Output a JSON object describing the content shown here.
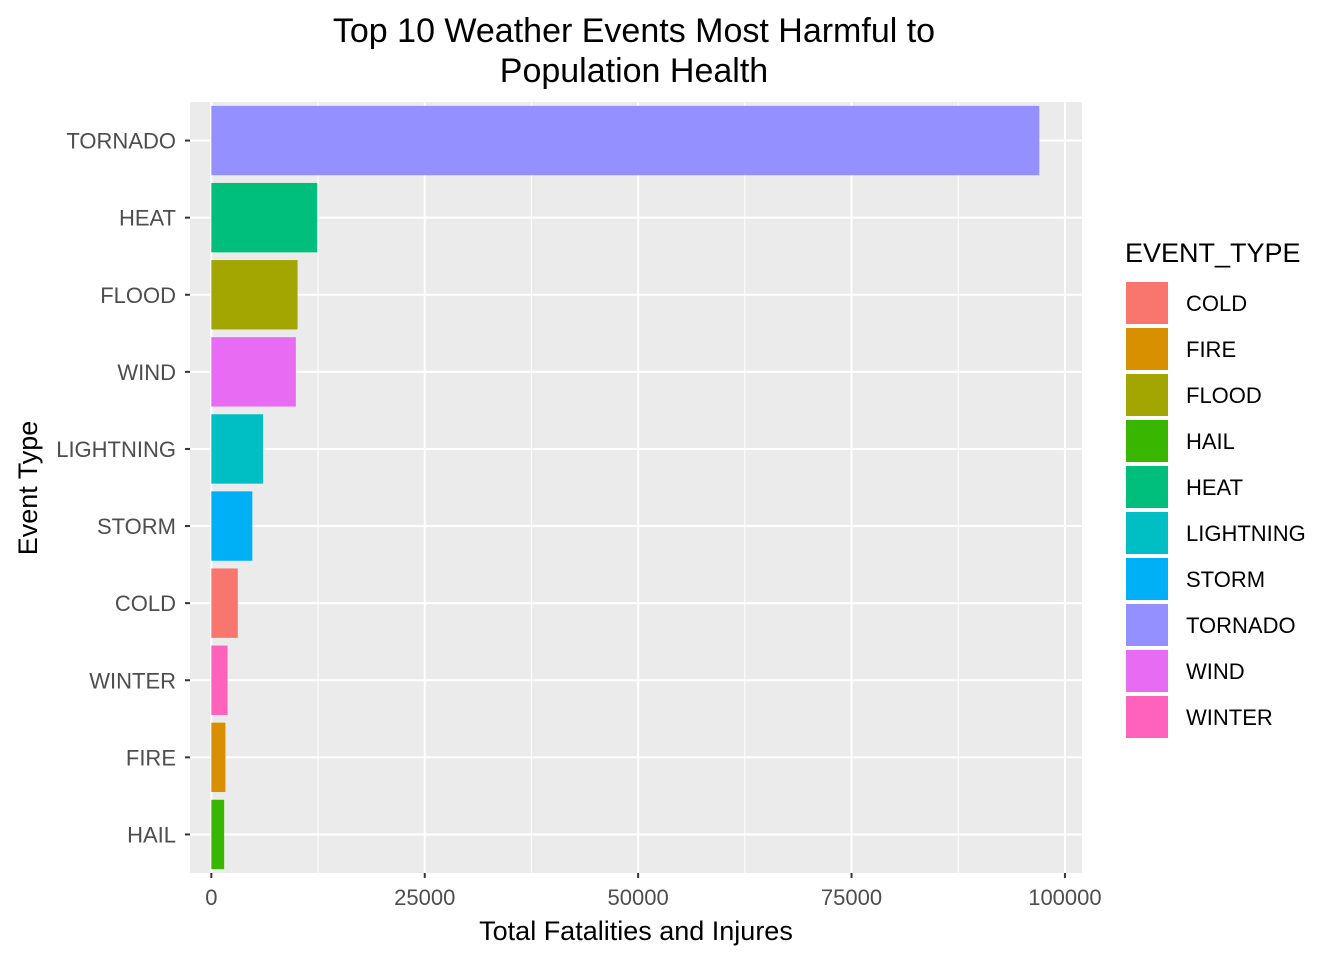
{
  "chart_data": {
    "type": "bar",
    "orientation": "horizontal",
    "title": "Top 10 Weather Events Most Harmful to\nPopulation Health",
    "xlabel": "Total Fatalities and Injures",
    "ylabel": "Event Type",
    "xlim": [
      -2500,
      102000
    ],
    "x_ticks": [
      0,
      25000,
      50000,
      75000,
      100000
    ],
    "x_tick_labels": [
      "0",
      "25000",
      "50000",
      "75000",
      "100000"
    ],
    "categories": [
      "TORNADO",
      "HEAT",
      "FLOOD",
      "WIND",
      "LIGHTNING",
      "STORM",
      "COLD",
      "WINTER",
      "FIRE",
      "HAIL"
    ],
    "values": [
      97000,
      12400,
      10100,
      9900,
      6050,
      4800,
      3100,
      1900,
      1650,
      1500
    ],
    "bar_colors": [
      "#9590FF",
      "#00BF7D",
      "#A3A500",
      "#E76BF3",
      "#00BFC4",
      "#00B0F6",
      "#F8766D",
      "#FF62BC",
      "#D89000",
      "#39B600"
    ],
    "legend": {
      "title": "EVENT_TYPE",
      "position": "right",
      "items": [
        {
          "label": "COLD",
          "color": "#F8766D"
        },
        {
          "label": "FIRE",
          "color": "#D89000"
        },
        {
          "label": "FLOOD",
          "color": "#A3A500"
        },
        {
          "label": "HAIL",
          "color": "#39B600"
        },
        {
          "label": "HEAT",
          "color": "#00BF7D"
        },
        {
          "label": "LIGHTNING",
          "color": "#00BFC4"
        },
        {
          "label": "STORM",
          "color": "#00B0F6"
        },
        {
          "label": "TORNADO",
          "color": "#9590FF"
        },
        {
          "label": "WIND",
          "color": "#E76BF3"
        },
        {
          "label": "WINTER",
          "color": "#FF62BC"
        }
      ]
    },
    "grid": true,
    "panel_background": "#EBEBEB",
    "grid_color": "#FFFFFF"
  }
}
